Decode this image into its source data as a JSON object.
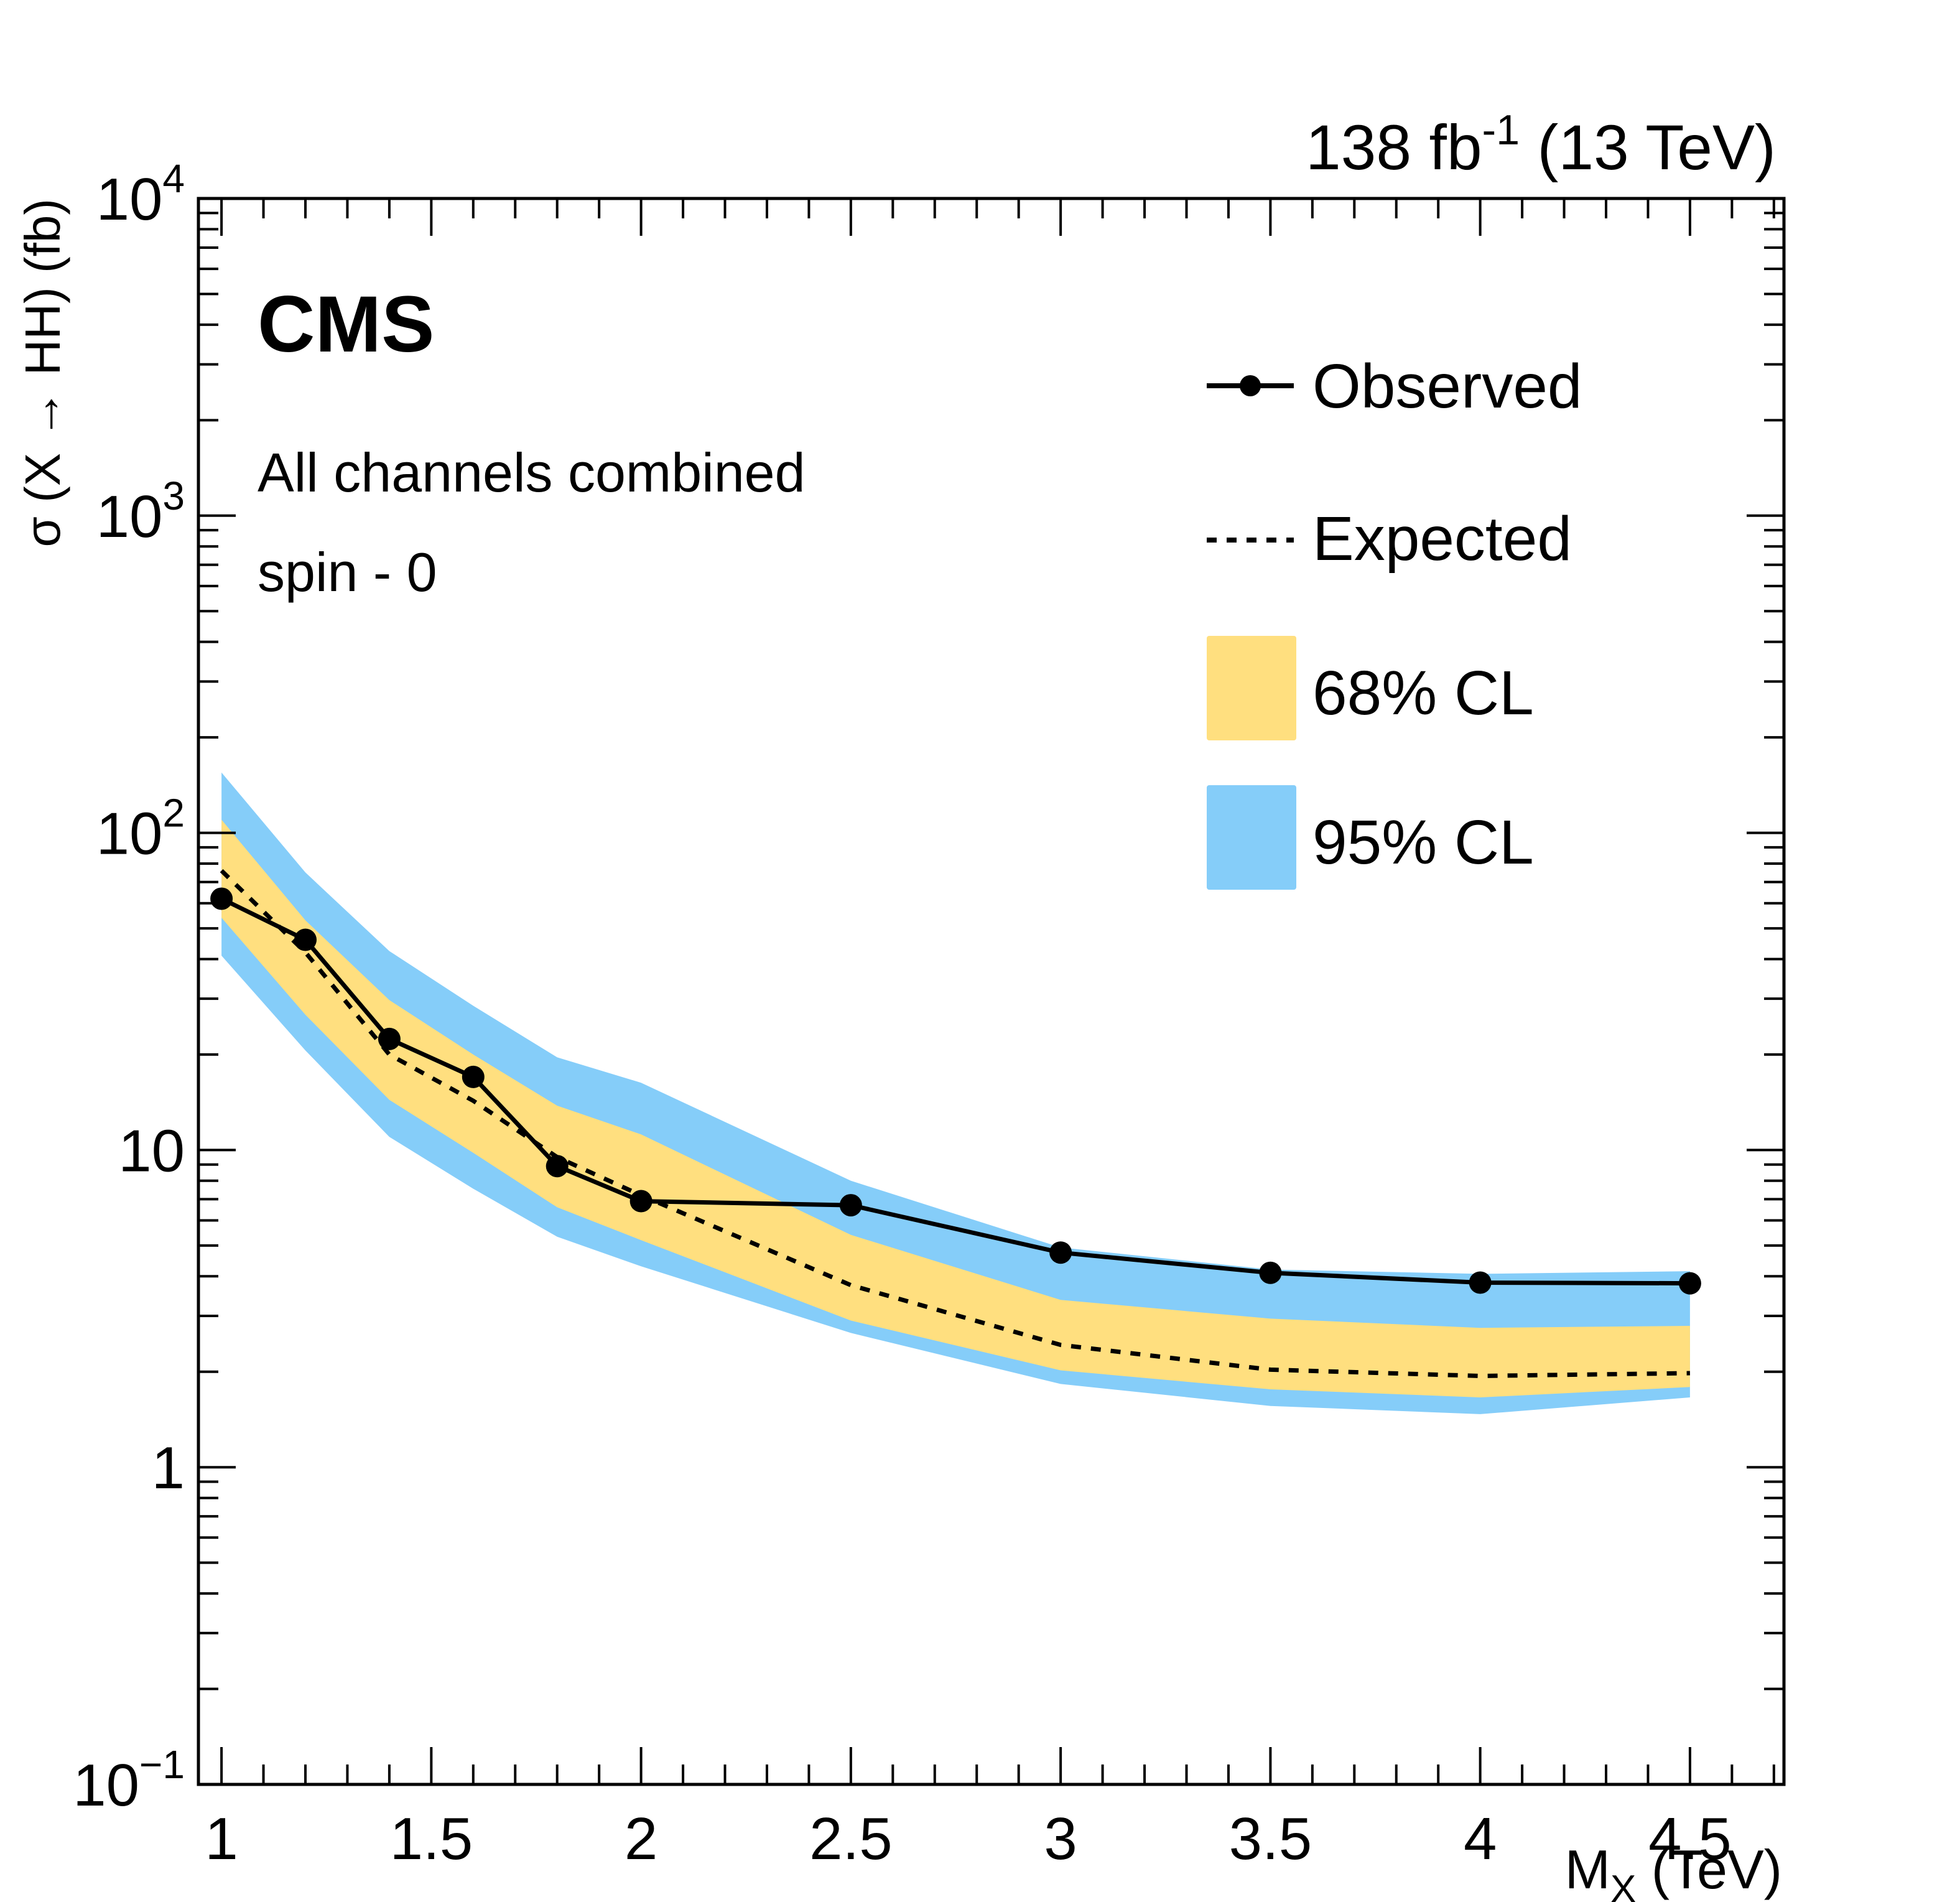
{
  "chart_data": {
    "type": "line",
    "title": "",
    "experiment": "CMS",
    "lumi_label": {
      "main": "138 fb",
      "superscript": "-1",
      "suffix": " (13 TeV)"
    },
    "annotations": [
      "All channels combined",
      "spin - 0"
    ],
    "xlabel": {
      "main": "M",
      "subscript": "X",
      "suffix": " (TeV)"
    },
    "ylabel": "σ (X → HH) (fb)",
    "xlim": [
      0.945,
      4.724
    ],
    "ylim": [
      0.1,
      10000
    ],
    "yscale": "log",
    "x_ticks": [
      1,
      1.5,
      2,
      2.5,
      3,
      3.5,
      4,
      4.5
    ],
    "x_tick_labels": [
      "1",
      "1.5",
      "2",
      "2.5",
      "3",
      "3.5",
      "4",
      "4.5"
    ],
    "y_ticks": [
      0.1,
      1,
      10,
      100,
      1000,
      10000
    ],
    "y_tick_labels": [
      {
        "base": "10",
        "exp": "−1"
      },
      {
        "base": "1",
        "exp": ""
      },
      {
        "base": "10",
        "exp": ""
      },
      {
        "base": "10",
        "exp": "2"
      },
      {
        "base": "10",
        "exp": "3"
      },
      {
        "base": "10",
        "exp": "4"
      }
    ],
    "grid": false,
    "legend_position": "top-right",
    "legend": [
      {
        "label": "Observed",
        "style": "line-marker"
      },
      {
        "label": "Expected",
        "style": "dashed"
      },
      {
        "label": "68% CL",
        "style": "fill",
        "color": "#FFDF7F"
      },
      {
        "label": "95% CL",
        "style": "fill",
        "color": "#85CDF9"
      }
    ],
    "x": [
      1.0,
      1.2,
      1.4,
      1.6,
      1.8,
      2.0,
      2.5,
      3.0,
      3.5,
      4.0,
      4.5
    ],
    "series": [
      {
        "name": "Observed",
        "values": [
          62,
          46,
          22.4,
          17.0,
          8.9,
          6.9,
          6.7,
          4.75,
          4.1,
          3.82,
          3.8
        ]
      },
      {
        "name": "Expected",
        "values": [
          76,
          42,
          20,
          14.3,
          9.5,
          7.2,
          3.75,
          2.43,
          2.03,
          1.94,
          1.98
        ]
      },
      {
        "name": "68% CL upper",
        "values": [
          110,
          53,
          29.7,
          20.0,
          13.8,
          11.2,
          5.4,
          3.37,
          2.94,
          2.75,
          2.79
        ]
      },
      {
        "name": "68% CL lower",
        "values": [
          54,
          26.7,
          14.4,
          9.8,
          6.6,
          5.2,
          2.9,
          2.02,
          1.76,
          1.66,
          1.79
        ]
      },
      {
        "name": "95% CL upper",
        "values": [
          155,
          75,
          42.4,
          28.5,
          19.6,
          16.3,
          8.0,
          4.93,
          4.2,
          4.07,
          4.15
        ]
      },
      {
        "name": "95% CL lower",
        "values": [
          41,
          20.6,
          11.0,
          7.55,
          5.33,
          4.3,
          2.65,
          1.83,
          1.56,
          1.47,
          1.66
        ]
      }
    ],
    "colors": {
      "band68": "#FFDF7F",
      "band95": "#85CDF9",
      "line": "#000000"
    }
  }
}
